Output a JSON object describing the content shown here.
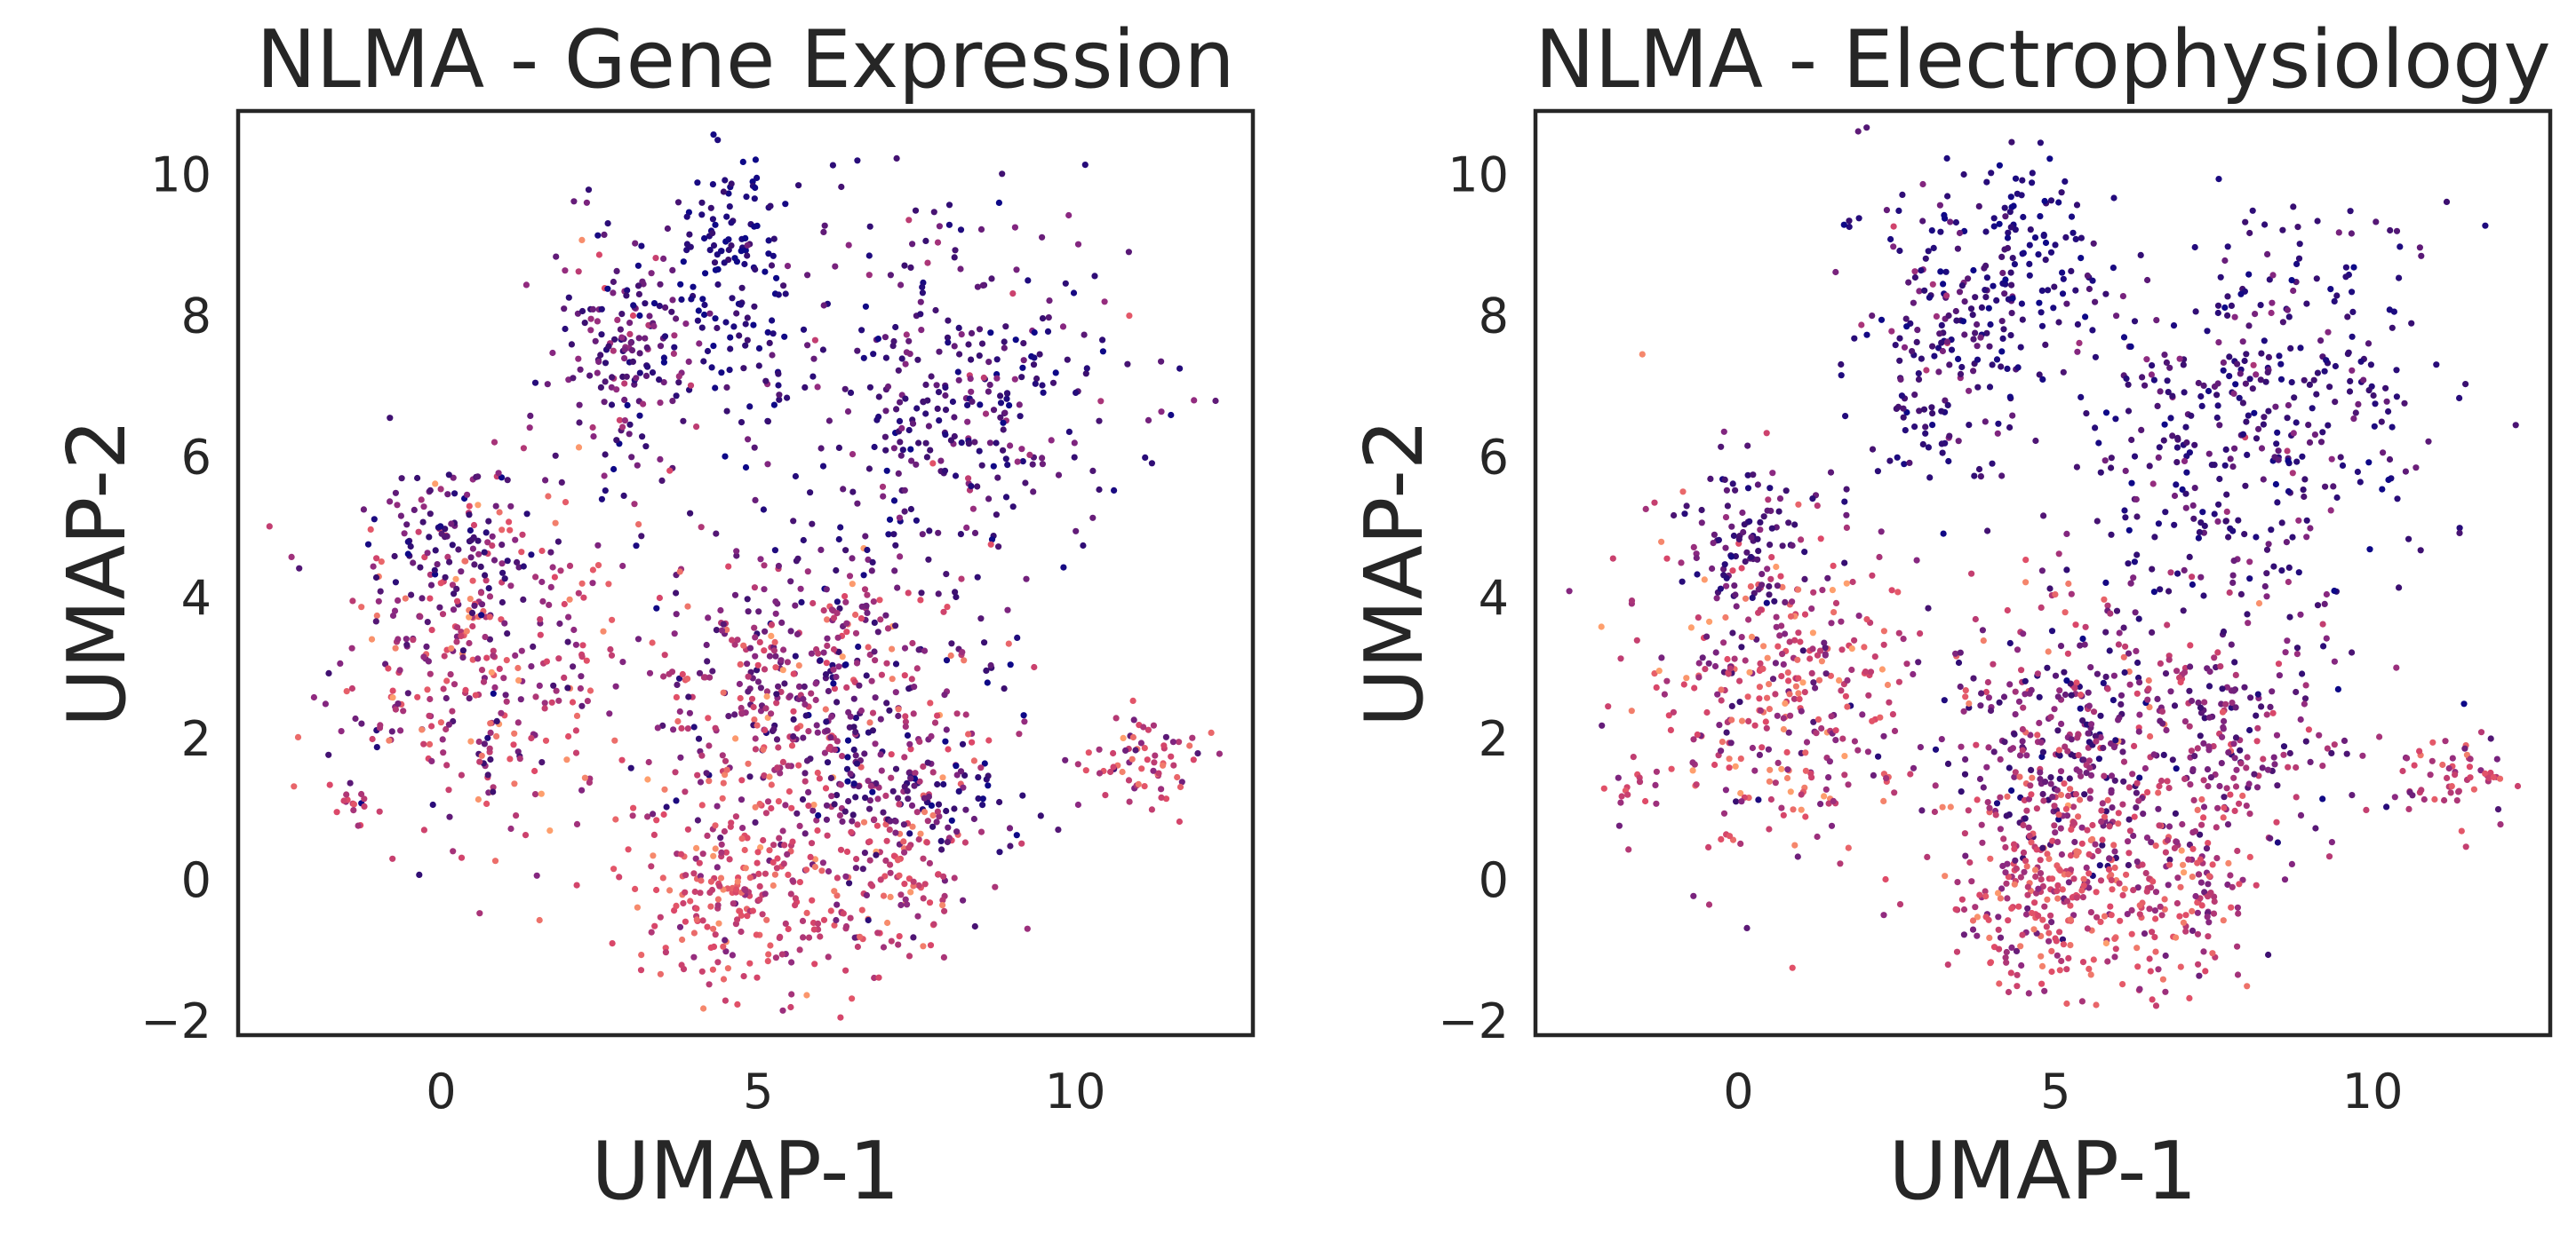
{
  "chart_data": [
    {
      "type": "scatter",
      "title": "NLMA - Gene Expression",
      "xlabel": "UMAP-1",
      "ylabel": "UMAP-2",
      "xlim": [
        -3.2,
        12.8
      ],
      "ylim": [
        -2.2,
        10.9
      ],
      "xticks": [
        0,
        5,
        10
      ],
      "xtick_labels": [
        "0",
        "5",
        "10"
      ],
      "yticks": [
        -2,
        0,
        2,
        4,
        6,
        8,
        10
      ],
      "ytick_labels": [
        "−2",
        "0",
        "2",
        "4",
        "6",
        "8",
        "10"
      ],
      "grid": false,
      "colormap": "magma",
      "colormap_stops": [
        "#0d0887",
        "#3b0f70",
        "#8c2981",
        "#de4968",
        "#fe9f6d"
      ],
      "clusters": [
        {
          "cx": 0.6,
          "cy": 3.1,
          "sx": 1.15,
          "sy": 1.3,
          "n": 360,
          "c_mean": 0.62,
          "c_sd": 0.2
        },
        {
          "cx": 0.1,
          "cy": 4.9,
          "sx": 0.6,
          "sy": 0.55,
          "n": 90,
          "c_mean": 0.28,
          "c_sd": 0.12
        },
        {
          "cx": -1.6,
          "cy": 1.1,
          "sx": 0.3,
          "sy": 0.2,
          "n": 14,
          "c_mean": 0.65,
          "c_sd": 0.1
        },
        {
          "cx": 3.0,
          "cy": 7.5,
          "sx": 0.65,
          "sy": 0.95,
          "n": 190,
          "c_mean": 0.33,
          "c_sd": 0.18
        },
        {
          "cx": 4.6,
          "cy": 8.7,
          "sx": 0.5,
          "sy": 0.9,
          "n": 120,
          "c_mean": 0.12,
          "c_sd": 0.1
        },
        {
          "cx": 7.9,
          "cy": 6.9,
          "sx": 1.5,
          "sy": 1.3,
          "n": 380,
          "c_mean": 0.28,
          "c_sd": 0.16
        },
        {
          "cx": 5.9,
          "cy": 2.7,
          "sx": 1.4,
          "sy": 1.1,
          "n": 520,
          "c_mean": 0.5,
          "c_sd": 0.22
        },
        {
          "cx": 4.8,
          "cy": -0.2,
          "sx": 0.95,
          "sy": 0.8,
          "n": 260,
          "c_mean": 0.72,
          "c_sd": 0.12
        },
        {
          "cx": 7.1,
          "cy": -0.1,
          "sx": 0.55,
          "sy": 0.7,
          "n": 110,
          "c_mean": 0.68,
          "c_sd": 0.14
        },
        {
          "cx": 11.0,
          "cy": 1.7,
          "sx": 0.55,
          "sy": 0.35,
          "n": 70,
          "c_mean": 0.7,
          "c_sd": 0.14
        },
        {
          "cx": 7.6,
          "cy": 1.1,
          "sx": 0.8,
          "sy": 0.5,
          "n": 110,
          "c_mean": 0.35,
          "c_sd": 0.2
        }
      ]
    },
    {
      "type": "scatter",
      "title": "NLMA - Electrophysiology",
      "xlabel": "UMAP-1",
      "ylabel": "UMAP-2",
      "xlim": [
        -3.2,
        12.8
      ],
      "ylim": [
        -2.2,
        10.9
      ],
      "xticks": [
        0,
        5,
        10
      ],
      "xtick_labels": [
        "0",
        "5",
        "10"
      ],
      "yticks": [
        -2,
        0,
        2,
        4,
        6,
        8,
        10
      ],
      "ytick_labels": [
        "−2",
        "0",
        "2",
        "4",
        "6",
        "8",
        "10"
      ],
      "grid": false,
      "colormap": "magma",
      "colormap_stops": [
        "#0d0887",
        "#3b0f70",
        "#8c2981",
        "#de4968",
        "#fe9f6d"
      ],
      "clusters": [
        {
          "cx": 0.6,
          "cy": 2.6,
          "sx": 1.1,
          "sy": 1.2,
          "n": 380,
          "c_mean": 0.65,
          "c_sd": 0.2
        },
        {
          "cx": 0.2,
          "cy": 4.8,
          "sx": 0.6,
          "sy": 0.55,
          "n": 90,
          "c_mean": 0.28,
          "c_sd": 0.14
        },
        {
          "cx": -1.7,
          "cy": 1.2,
          "sx": 0.3,
          "sy": 0.25,
          "n": 14,
          "c_mean": 0.66,
          "c_sd": 0.1
        },
        {
          "cx": 3.2,
          "cy": 7.6,
          "sx": 0.7,
          "sy": 1.1,
          "n": 200,
          "c_mean": 0.26,
          "c_sd": 0.16
        },
        {
          "cx": 4.6,
          "cy": 8.9,
          "sx": 0.45,
          "sy": 0.8,
          "n": 100,
          "c_mean": 0.1,
          "c_sd": 0.08
        },
        {
          "cx": 8.1,
          "cy": 6.6,
          "sx": 1.5,
          "sy": 1.4,
          "n": 420,
          "c_mean": 0.24,
          "c_sd": 0.14
        },
        {
          "cx": 5.6,
          "cy": 2.2,
          "sx": 1.3,
          "sy": 1.1,
          "n": 450,
          "c_mean": 0.46,
          "c_sd": 0.22
        },
        {
          "cx": 5.0,
          "cy": -0.1,
          "sx": 1.0,
          "sy": 0.8,
          "n": 300,
          "c_mean": 0.7,
          "c_sd": 0.13
        },
        {
          "cx": 7.0,
          "cy": -0.2,
          "sx": 0.55,
          "sy": 0.7,
          "n": 110,
          "c_mean": 0.66,
          "c_sd": 0.14
        },
        {
          "cx": 11.2,
          "cy": 1.5,
          "sx": 0.5,
          "sy": 0.35,
          "n": 60,
          "c_mean": 0.68,
          "c_sd": 0.14
        },
        {
          "cx": 8.0,
          "cy": 2.0,
          "sx": 0.9,
          "sy": 0.9,
          "n": 130,
          "c_mean": 0.45,
          "c_sd": 0.2
        }
      ]
    }
  ]
}
